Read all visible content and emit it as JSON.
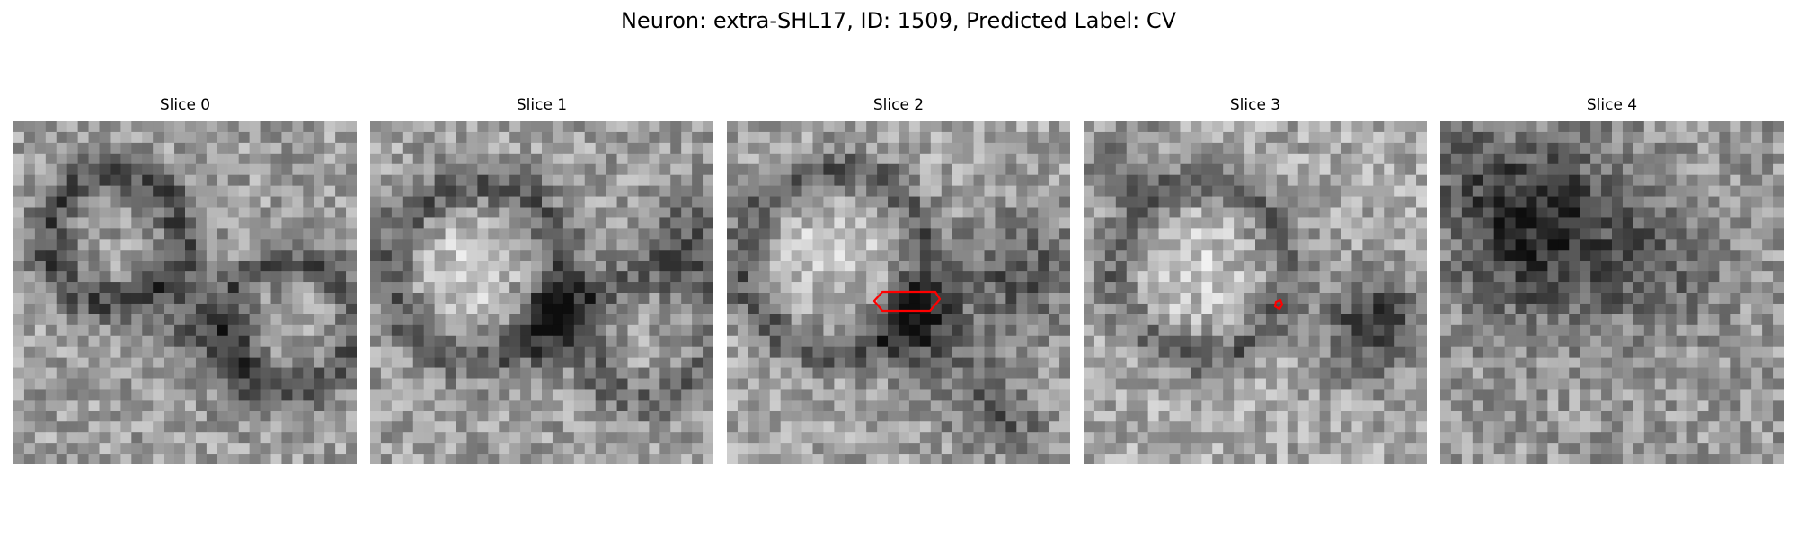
{
  "figure": {
    "title": "Neuron: extra-SHL17, ID: 1509, Predicted Label: CV"
  },
  "colors": {
    "background": "#ffffff",
    "contour": "#ff0000",
    "colormap": "gray"
  },
  "panels": [
    {
      "title": "Slice 0",
      "seed": 11,
      "has_contour": false
    },
    {
      "title": "Slice 1",
      "seed": 23,
      "has_contour": false
    },
    {
      "title": "Slice 2",
      "seed": 37,
      "has_contour": true
    },
    {
      "title": "Slice 3",
      "seed": 41,
      "has_contour": true
    },
    {
      "title": "Slice 4",
      "seed": 59,
      "has_contour": false
    }
  ]
}
